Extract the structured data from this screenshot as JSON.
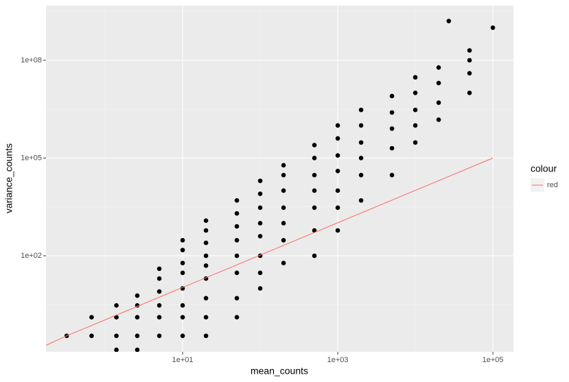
{
  "chart_data": {
    "type": "scatter",
    "x_label": "mean_counts",
    "y_label": "variance_counts",
    "x_log": true,
    "y_log": true,
    "grid": true,
    "point_color": "#000000",
    "xlim": [
      0.173,
      184000
    ],
    "ylim": [
      0.113,
      4800000000.0
    ],
    "xticks": [
      {
        "value": 10,
        "label": "1e+01"
      },
      {
        "value": 1000,
        "label": "1e+03"
      },
      {
        "value": 100000,
        "label": "1e+05"
      }
    ],
    "yticks": [
      {
        "value": 100,
        "label": "1e+02"
      },
      {
        "value": 100000,
        "label": "1e+05"
      },
      {
        "value": 100000000,
        "label": "1e+08"
      }
    ],
    "x_minor_ticks": [
      1,
      100,
      10000
    ],
    "y_minor_ticks": [
      3.162,
      3162,
      3162000,
      3162000000
    ],
    "x": [
      0.32,
      0.67,
      0.67,
      1.4,
      1.4,
      1.4,
      1.4,
      2.6,
      2.6,
      2.6,
      2.6,
      2.6,
      5,
      5,
      5,
      5,
      5,
      5,
      10,
      10,
      10,
      10,
      10,
      10,
      10,
      10,
      20,
      20,
      20,
      20,
      20,
      20,
      20,
      20,
      20,
      50,
      50,
      50,
      50,
      50,
      50,
      50,
      50,
      100,
      100,
      100,
      100,
      100,
      100,
      100,
      100,
      200,
      200,
      200,
      200,
      200,
      200,
      200,
      500,
      500,
      500,
      500,
      500,
      500,
      500,
      1000,
      1000,
      1000,
      1000,
      1000,
      1000,
      1000,
      2000,
      2000,
      2000,
      2000,
      2000,
      2000,
      5000,
      5000,
      5000,
      5000,
      5000,
      10000,
      10000,
      10000,
      10000,
      10000,
      20000,
      20000,
      20000,
      20000,
      50000,
      50000,
      50000,
      50000,
      27000,
      100000
    ],
    "y": [
      0.35,
      0.35,
      1.3,
      0.13,
      0.35,
      1.3,
      3,
      0.13,
      0.35,
      1.3,
      3,
      6,
      0.35,
      1.3,
      3,
      8,
      20,
      40,
      0.35,
      1.3,
      3,
      10,
      30,
      60,
      150,
      300,
      0.35,
      1.3,
      5,
      20,
      50,
      100,
      250,
      600,
      1200,
      1.3,
      5,
      30,
      100,
      300,
      800,
      2000,
      5000,
      10,
      30,
      100,
      400,
      1000,
      3000,
      8000,
      20000,
      60,
      300,
      1000,
      3000,
      10000,
      30000,
      60000,
      100,
      600,
      3000,
      10000,
      30000,
      100000,
      250000,
      600,
      3000,
      10000,
      40000,
      120000,
      400000,
      1000000,
      5000,
      30000,
      100000,
      300000,
      1000000,
      3000000,
      30000,
      200000,
      800000,
      2500000,
      8000000,
      300000,
      1000000,
      3000000,
      10000000,
      30000000,
      1500000,
      5000000,
      20000000,
      60000000,
      10000000,
      40000000,
      100000000,
      200000000,
      1600000000,
      1000000000
    ],
    "legend_title": "colour",
    "lines": [
      {
        "name": "red",
        "color": "#F8766D",
        "x": [
          0.12,
          0.32,
          100000
        ],
        "y": [
          0.12,
          0.35,
          100000
        ]
      }
    ]
  }
}
